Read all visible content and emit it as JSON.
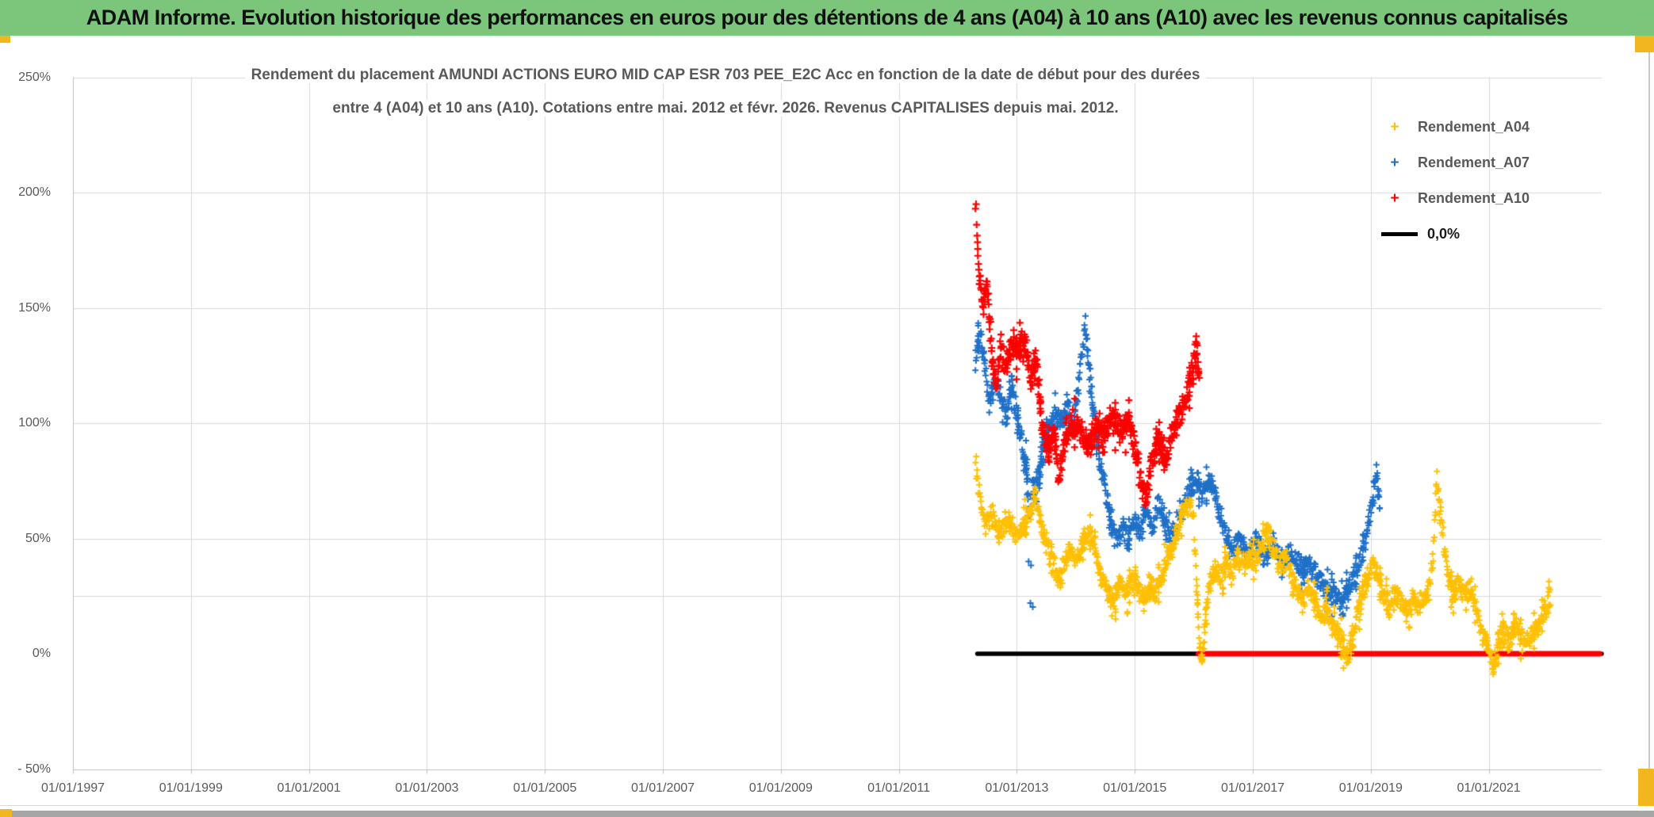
{
  "header": {
    "title": "ADAM Informe. Evolution historique des performances en euros pour des détentions de 4 ans (A04) à 10 ans (A10) avec les revenus connus capitalisés",
    "bg_color": "#7CC67C"
  },
  "chart": {
    "title_line1": "Rendement du placement AMUNDI ACTIONS EURO MID CAP ESR 703 PEE_E2C Acc en fonction de la date de début pour des durées",
    "title_line2": "entre 4 (A04) et 10 ans (A10). Cotations entre mai. 2012 et févr. 2026. Revenus CAPITALISES depuis mai. 2012.",
    "legend": [
      {
        "label": "Rendement_A04",
        "marker": "plus",
        "color": "#FFC004",
        "label_color": "#595959"
      },
      {
        "label": "Rendement_A07",
        "marker": "plus",
        "color": "#1F70C8",
        "label_color": "#595959"
      },
      {
        "label": "Rendement_A10",
        "marker": "plus",
        "color": "#FF0000",
        "label_color": "#595959"
      },
      {
        "label": "0,0%",
        "marker": "line",
        "color": "#000000",
        "label_color": "#1a1a1a"
      }
    ]
  },
  "chart_data": {
    "type": "scatter",
    "title": "Rendement du placement AMUNDI ACTIONS EURO MID CAP ESR 703 PEE_E2C Acc en fonction de la date de début pour des durées entre 4 (A04) et 10 ans (A10). Cotations entre mai. 2012 et févr. 2026. Revenus CAPITALISES depuis mai. 2012.",
    "x_axis": {
      "labels": [
        "01/01/1997",
        "01/01/1999",
        "01/01/2001",
        "01/01/2003",
        "01/01/2005",
        "01/01/2007",
        "01/01/2009",
        "01/01/2011",
        "01/01/2013",
        "01/01/2015",
        "01/01/2017",
        "01/01/2019",
        "01/01/2021"
      ],
      "label_years": [
        1997,
        1999,
        2001,
        2003,
        2005,
        2007,
        2009,
        2011,
        2013,
        2015,
        2017,
        2019,
        2021
      ],
      "range_years": [
        1997.0,
        2022.95
      ],
      "gridline_color": "#d9d9d9"
    },
    "y_axis": {
      "labels": [
        "250%",
        "200%",
        "150%",
        "100%",
        "50%",
        "0%",
        "- 50%"
      ],
      "label_values": [
        250,
        200,
        150,
        100,
        50,
        0,
        -50
      ],
      "min": -50,
      "max": 250,
      "unit": "%",
      "gridline_values": [
        250,
        200,
        150,
        100,
        50,
        25,
        -50
      ],
      "gridline_color": "#d9d9d9"
    },
    "series": [
      {
        "name": "Rendement_A07",
        "color": "#1F70C8",
        "marker": "plus",
        "jitter": 6,
        "step": 0.009,
        "size": 4,
        "lw": 2.0,
        "backbone": [
          [
            2012.3,
            128
          ],
          [
            2012.38,
            138
          ],
          [
            2012.46,
            125
          ],
          [
            2012.54,
            108
          ],
          [
            2012.62,
            118
          ],
          [
            2012.72,
            112
          ],
          [
            2012.82,
            103
          ],
          [
            2012.92,
            115
          ],
          [
            2013.0,
            105
          ],
          [
            2013.08,
            93
          ],
          [
            2013.16,
            83
          ],
          [
            2013.21,
            60
          ],
          [
            2013.26,
            70
          ],
          [
            2013.36,
            78
          ],
          [
            2013.46,
            88
          ],
          [
            2013.56,
            98
          ],
          [
            2013.66,
            104
          ],
          [
            2013.76,
            100
          ],
          [
            2013.86,
            108
          ],
          [
            2013.94,
            97
          ],
          [
            2014.02,
            112
          ],
          [
            2014.1,
            127
          ],
          [
            2014.16,
            143
          ],
          [
            2014.22,
            126
          ],
          [
            2014.3,
            105
          ],
          [
            2014.4,
            85
          ],
          [
            2014.5,
            70
          ],
          [
            2014.6,
            57
          ],
          [
            2014.7,
            48
          ],
          [
            2014.8,
            55
          ],
          [
            2014.9,
            48
          ],
          [
            2015.0,
            58
          ],
          [
            2015.1,
            52
          ],
          [
            2015.2,
            62
          ],
          [
            2015.3,
            55
          ],
          [
            2015.4,
            65
          ],
          [
            2015.5,
            58
          ],
          [
            2015.6,
            52
          ],
          [
            2015.72,
            57
          ],
          [
            2015.85,
            66
          ],
          [
            2015.95,
            72
          ],
          [
            2016.05,
            76
          ],
          [
            2016.15,
            70
          ],
          [
            2016.25,
            77
          ],
          [
            2016.35,
            70
          ],
          [
            2016.45,
            60
          ],
          [
            2016.55,
            50
          ],
          [
            2016.65,
            45
          ],
          [
            2016.78,
            50
          ],
          [
            2016.9,
            43
          ],
          [
            2017.05,
            48
          ],
          [
            2017.2,
            43
          ],
          [
            2017.35,
            47
          ],
          [
            2017.5,
            40
          ],
          [
            2017.65,
            44
          ],
          [
            2017.8,
            36
          ],
          [
            2017.95,
            40
          ],
          [
            2018.1,
            33
          ],
          [
            2018.25,
            28
          ],
          [
            2018.4,
            25
          ],
          [
            2018.52,
            22
          ],
          [
            2018.62,
            28
          ],
          [
            2018.72,
            35
          ],
          [
            2018.82,
            42
          ],
          [
            2018.92,
            50
          ],
          [
            2019.0,
            62
          ],
          [
            2019.06,
            72
          ],
          [
            2019.1,
            79
          ],
          [
            2019.15,
            63
          ]
        ],
        "outliers": [
          [
            2013.2,
            40
          ],
          [
            2013.23,
            22
          ]
        ]
      },
      {
        "name": "Rendement_A04",
        "color": "#FFC004",
        "marker": "plus",
        "jitter": 6,
        "step": 0.009,
        "size": 4,
        "lw": 2.0,
        "backbone": [
          [
            2012.3,
            85
          ],
          [
            2012.34,
            74
          ],
          [
            2012.4,
            62
          ],
          [
            2012.48,
            56
          ],
          [
            2012.58,
            60
          ],
          [
            2012.68,
            52
          ],
          [
            2012.78,
            56
          ],
          [
            2012.88,
            58
          ],
          [
            2013.0,
            50
          ],
          [
            2013.1,
            55
          ],
          [
            2013.22,
            62
          ],
          [
            2013.32,
            68
          ],
          [
            2013.42,
            56
          ],
          [
            2013.52,
            46
          ],
          [
            2013.62,
            38
          ],
          [
            2013.72,
            32
          ],
          [
            2013.82,
            40
          ],
          [
            2013.92,
            46
          ],
          [
            2014.02,
            40
          ],
          [
            2014.12,
            48
          ],
          [
            2014.24,
            52
          ],
          [
            2014.34,
            44
          ],
          [
            2014.44,
            34
          ],
          [
            2014.54,
            28
          ],
          [
            2014.64,
            22
          ],
          [
            2014.74,
            30
          ],
          [
            2014.84,
            25
          ],
          [
            2014.94,
            32
          ],
          [
            2015.04,
            28
          ],
          [
            2015.14,
            22
          ],
          [
            2015.24,
            30
          ],
          [
            2015.34,
            26
          ],
          [
            2015.44,
            33
          ],
          [
            2015.54,
            40
          ],
          [
            2015.64,
            47
          ],
          [
            2015.74,
            54
          ],
          [
            2015.84,
            62
          ],
          [
            2015.94,
            66
          ],
          [
            2016.0,
            58
          ],
          [
            2016.05,
            28
          ],
          [
            2016.1,
            2
          ],
          [
            2016.14,
            -4
          ],
          [
            2016.18,
            10
          ],
          [
            2016.25,
            28
          ],
          [
            2016.35,
            38
          ],
          [
            2016.45,
            33
          ],
          [
            2016.55,
            40
          ],
          [
            2016.65,
            35
          ],
          [
            2016.75,
            42
          ],
          [
            2016.85,
            38
          ],
          [
            2016.95,
            44
          ],
          [
            2017.05,
            40
          ],
          [
            2017.15,
            47
          ],
          [
            2017.25,
            52
          ],
          [
            2017.35,
            45
          ],
          [
            2017.45,
            38
          ],
          [
            2017.55,
            42
          ],
          [
            2017.65,
            35
          ],
          [
            2017.75,
            28
          ],
          [
            2017.85,
            23
          ],
          [
            2017.95,
            28
          ],
          [
            2018.05,
            22
          ],
          [
            2018.15,
            16
          ],
          [
            2018.25,
            20
          ],
          [
            2018.35,
            13
          ],
          [
            2018.45,
            8
          ],
          [
            2018.55,
            3
          ],
          [
            2018.62,
            -2
          ],
          [
            2018.7,
            8
          ],
          [
            2018.8,
            20
          ],
          [
            2018.9,
            30
          ],
          [
            2019.0,
            36
          ],
          [
            2019.08,
            38
          ],
          [
            2019.16,
            30
          ],
          [
            2019.24,
            24
          ],
          [
            2019.32,
            20
          ],
          [
            2019.42,
            26
          ],
          [
            2019.52,
            22
          ],
          [
            2019.62,
            18
          ],
          [
            2019.72,
            24
          ],
          [
            2019.82,
            20
          ],
          [
            2019.92,
            24
          ],
          [
            2020.0,
            30
          ],
          [
            2020.06,
            45
          ],
          [
            2020.12,
            76
          ],
          [
            2020.2,
            56
          ],
          [
            2020.3,
            34
          ],
          [
            2020.4,
            26
          ],
          [
            2020.5,
            30
          ],
          [
            2020.6,
            24
          ],
          [
            2020.7,
            28
          ],
          [
            2020.8,
            18
          ],
          [
            2020.9,
            8
          ],
          [
            2021.0,
            3
          ],
          [
            2021.08,
            -5
          ],
          [
            2021.16,
            4
          ],
          [
            2021.25,
            9
          ],
          [
            2021.35,
            6
          ],
          [
            2021.45,
            11
          ],
          [
            2021.55,
            7
          ],
          [
            2021.65,
            5
          ],
          [
            2021.75,
            9
          ],
          [
            2021.85,
            13
          ],
          [
            2021.95,
            18
          ],
          [
            2022.05,
            25
          ]
        ],
        "outliers": []
      },
      {
        "name": "Rendement_A10",
        "color": "#FF0000",
        "marker": "plus",
        "jitter": 7,
        "step": 0.008,
        "size": 4.5,
        "lw": 2.2,
        "backbone": [
          [
            2012.3,
            193
          ],
          [
            2012.35,
            168
          ],
          [
            2012.42,
            150
          ],
          [
            2012.5,
            160
          ],
          [
            2012.58,
            128
          ],
          [
            2012.65,
            113
          ],
          [
            2012.73,
            133
          ],
          [
            2012.81,
            122
          ],
          [
            2012.91,
            136
          ],
          [
            2013.01,
            130
          ],
          [
            2013.11,
            137
          ],
          [
            2013.23,
            120
          ],
          [
            2013.33,
            127
          ],
          [
            2013.43,
            99
          ],
          [
            2013.53,
            88
          ],
          [
            2013.63,
            96
          ],
          [
            2013.72,
            76
          ],
          [
            2013.83,
            95
          ],
          [
            2013.93,
            101
          ],
          [
            2014.08,
            97
          ],
          [
            2014.22,
            89
          ],
          [
            2014.36,
            100
          ],
          [
            2014.5,
            97
          ],
          [
            2014.64,
            101
          ],
          [
            2014.78,
            96
          ],
          [
            2014.9,
            102
          ],
          [
            2015.0,
            88
          ],
          [
            2015.1,
            76
          ],
          [
            2015.18,
            67
          ],
          [
            2015.28,
            84
          ],
          [
            2015.4,
            92
          ],
          [
            2015.52,
            84
          ],
          [
            2015.62,
            95
          ],
          [
            2015.72,
            101
          ],
          [
            2015.82,
            108
          ],
          [
            2015.92,
            118
          ],
          [
            2016.0,
            126
          ],
          [
            2016.05,
            133
          ],
          [
            2016.1,
            117
          ]
        ],
        "outliers": []
      }
    ],
    "zero_lines": [
      {
        "name": "0,0%",
        "color": "#000000",
        "y": 0,
        "x_range": [
          2012.33,
          2022.93
        ],
        "width": 5.5
      },
      {
        "name": "A10-zero-extension",
        "color": "#FF0000",
        "y": 0,
        "x_range": [
          2016.08,
          2022.88
        ],
        "width": 7
      }
    ],
    "legend_position": "top-right",
    "grid": true
  },
  "accents": {
    "color": "#F2B71E"
  }
}
